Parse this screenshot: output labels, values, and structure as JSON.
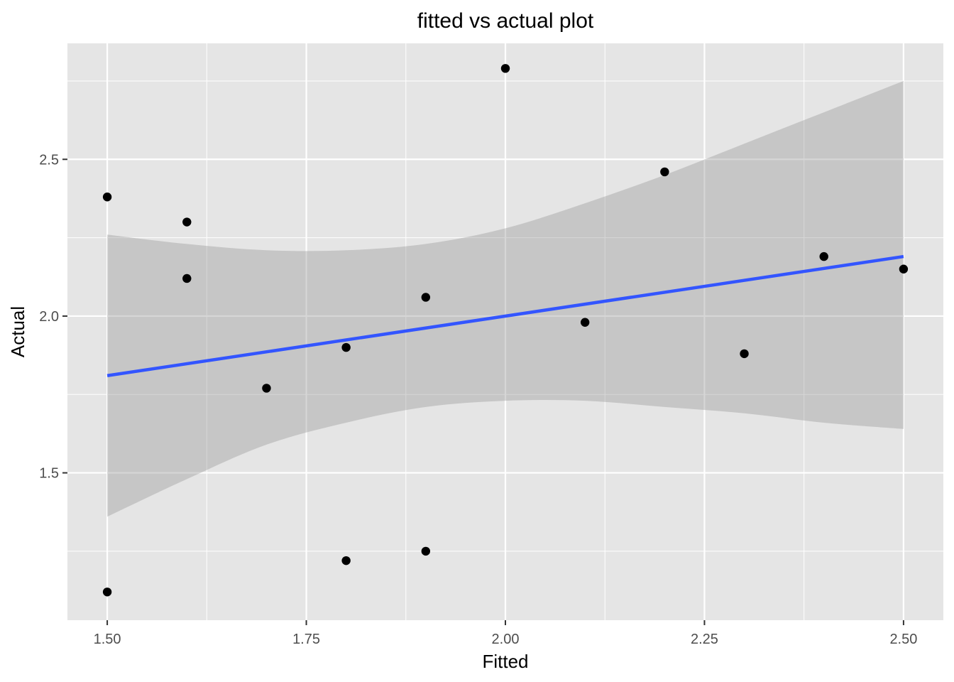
{
  "chart_data": {
    "type": "scatter",
    "title": "fitted vs actual plot",
    "xlabel": "Fitted",
    "ylabel": "Actual",
    "xlim": [
      1.45,
      2.55
    ],
    "ylim": [
      1.03,
      2.87
    ],
    "x_ticks": [
      1.5,
      1.75,
      2.0,
      2.25,
      2.5
    ],
    "x_tick_labels": [
      "1.50",
      "1.75",
      "2.00",
      "2.25",
      "2.50"
    ],
    "y_ticks": [
      1.5,
      2.0,
      2.5
    ],
    "y_tick_labels": [
      "1.5",
      "2.0",
      "2.5"
    ],
    "grid": true,
    "panel_background": "#e5e5e5",
    "grid_color": "#ffffff",
    "point_color": "#000000",
    "line_color": "#3355ff",
    "band_color": "#999999",
    "series": [
      {
        "type": "scatter",
        "points": [
          {
            "x": 1.5,
            "y": 2.38
          },
          {
            "x": 1.5,
            "y": 1.12
          },
          {
            "x": 1.6,
            "y": 2.3
          },
          {
            "x": 1.6,
            "y": 2.12
          },
          {
            "x": 1.7,
            "y": 1.77
          },
          {
            "x": 1.8,
            "y": 1.9
          },
          {
            "x": 1.8,
            "y": 1.22
          },
          {
            "x": 1.9,
            "y": 2.06
          },
          {
            "x": 1.9,
            "y": 1.25
          },
          {
            "x": 2.0,
            "y": 2.79
          },
          {
            "x": 2.1,
            "y": 1.98
          },
          {
            "x": 2.2,
            "y": 2.46
          },
          {
            "x": 2.3,
            "y": 1.88
          },
          {
            "x": 2.4,
            "y": 2.19
          },
          {
            "x": 2.5,
            "y": 2.15
          }
        ]
      },
      {
        "type": "line",
        "method": "linear fit",
        "x": [
          1.5,
          2.5
        ],
        "y": [
          1.81,
          2.19
        ]
      },
      {
        "type": "confidence_band",
        "x": [
          1.5,
          1.6,
          1.7,
          1.8,
          1.9,
          2.0,
          2.1,
          2.2,
          2.3,
          2.4,
          2.5
        ],
        "upper": [
          2.26,
          2.23,
          2.21,
          2.21,
          2.23,
          2.28,
          2.36,
          2.45,
          2.55,
          2.65,
          2.75
        ],
        "lower": [
          1.36,
          1.48,
          1.59,
          1.66,
          1.71,
          1.73,
          1.73,
          1.71,
          1.69,
          1.66,
          1.64
        ]
      }
    ]
  }
}
